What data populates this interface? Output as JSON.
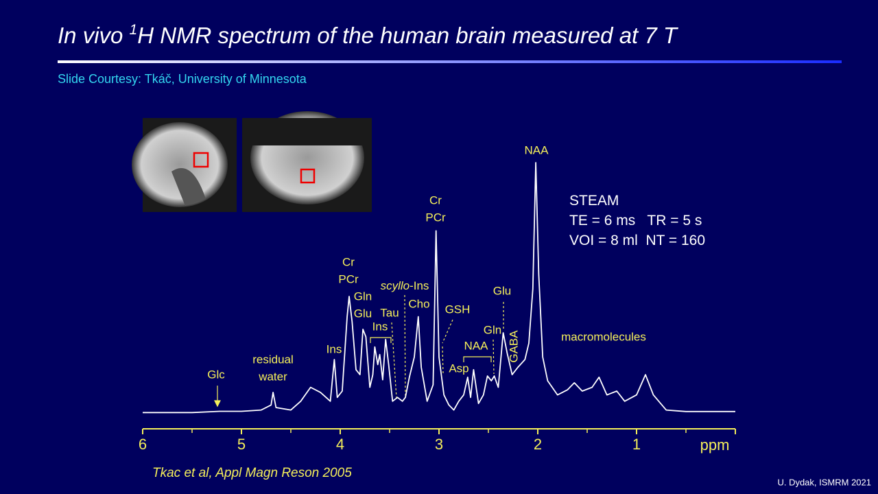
{
  "chart_data": {
    "type": "line",
    "title": [
      "In vivo ",
      "1",
      "H NMR spectrum of the human brain measured at 7 T"
    ],
    "subtitle": "Slide Courtesy: Tkáč, University of Minnesota",
    "x_label": "ppm",
    "xlim": [
      6,
      0
    ],
    "xticks": [
      6,
      5,
      4,
      3,
      2,
      1
    ],
    "xminor_ticks": [
      5.5,
      4.5,
      3.5,
      2.5,
      1.5,
      0.5
    ],
    "ylim": [
      0,
      100
    ],
    "color": "#ffffff",
    "axis_color": "#f5ef5a",
    "x": [
      6.0,
      5.5,
      5.22,
      5.0,
      4.8,
      4.7,
      4.68,
      4.65,
      4.5,
      4.4,
      4.3,
      4.2,
      4.1,
      4.06,
      4.03,
      3.98,
      3.93,
      3.91,
      3.88,
      3.84,
      3.8,
      3.77,
      3.74,
      3.7,
      3.67,
      3.65,
      3.62,
      3.6,
      3.57,
      3.54,
      3.51,
      3.47,
      3.42,
      3.37,
      3.34,
      3.3,
      3.25,
      3.21,
      3.18,
      3.12,
      3.06,
      3.03,
      3.0,
      2.95,
      2.9,
      2.85,
      2.8,
      2.75,
      2.71,
      2.68,
      2.65,
      2.6,
      2.55,
      2.51,
      2.47,
      2.44,
      2.4,
      2.35,
      2.31,
      2.26,
      2.2,
      2.13,
      2.09,
      2.05,
      2.02,
      1.99,
      1.95,
      1.9,
      1.8,
      1.7,
      1.63,
      1.55,
      1.45,
      1.38,
      1.3,
      1.2,
      1.12,
      1.0,
      0.91,
      0.83,
      0.7,
      0.5,
      0.0
    ],
    "values": [
      1,
      1,
      1.5,
      1.5,
      2,
      4,
      9,
      3,
      2,
      5.5,
      11,
      9,
      5.5,
      22,
      7,
      9.5,
      39,
      47,
      37,
      18,
      16,
      34,
      31,
      11,
      16,
      27,
      20,
      24,
      14,
      30,
      20,
      5.5,
      7,
      5.5,
      7,
      15,
      23,
      39,
      19,
      5.5,
      12,
      73,
      23,
      8,
      4,
      2,
      5.5,
      8,
      15,
      7,
      18,
      4.6,
      8,
      15.5,
      13.6,
      15.5,
      11,
      32.6,
      24.5,
      16,
      19,
      22,
      28.5,
      50,
      100,
      55.7,
      23,
      13.6,
      8,
      10,
      12.8,
      9.5,
      11,
      15,
      8,
      9.5,
      5.5,
      8,
      16,
      8,
      2,
      1.4,
      1.4
    ],
    "annotations": [
      "Glc",
      "residual",
      "water",
      "Ins",
      "Cr",
      "PCr",
      "Gln",
      "Glu",
      "Ins",
      "Tau",
      [
        "scyllo",
        "-Ins"
      ],
      "Cho",
      "Cr",
      "PCr",
      "GSH",
      "NAA",
      "Asp",
      "Glu",
      "Gln",
      "GABA",
      "NAA",
      "macromolecules"
    ],
    "sequence": [
      "STEAM",
      "TE = 6 ms   TR = 5 s",
      "VOI = 8 ml  NT = 160"
    ],
    "citation": "Tkac et al, Appl Magn Reson 2005",
    "credit": "U. Dydak, ISMRM 2021"
  }
}
